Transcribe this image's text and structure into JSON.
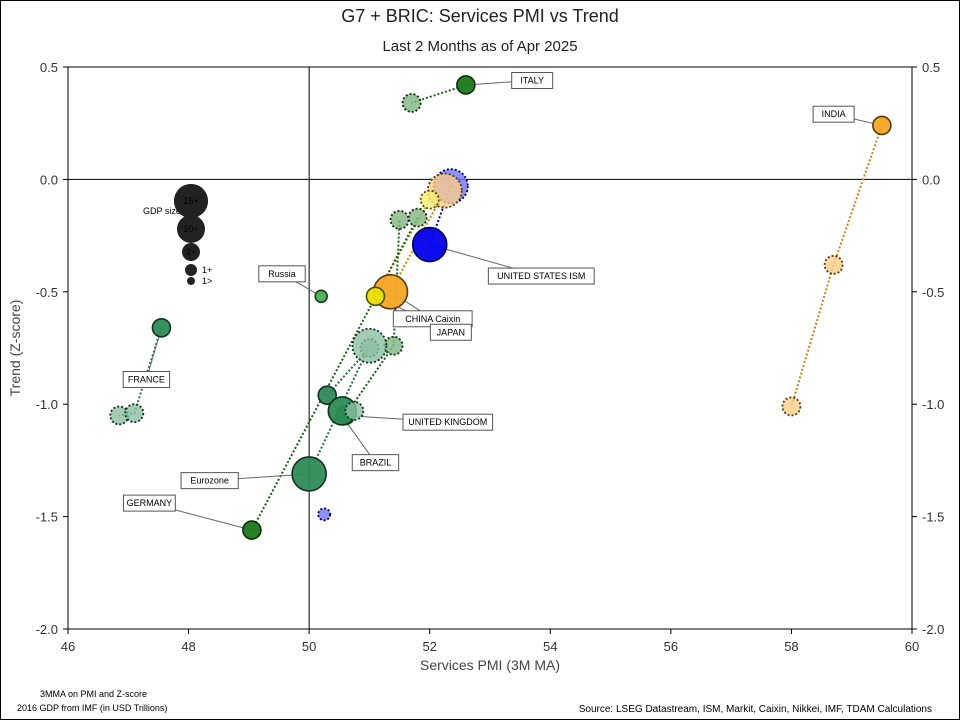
{
  "chart_data": {
    "type": "scatter",
    "title": "G7 + BRIC: Services PMI vs Trend",
    "subtitle": "Last 2 Months as of Apr 2025",
    "xlabel": "Services PMI (3M MA)",
    "ylabel": "Trend (Z-score)",
    "xlim": [
      46,
      60
    ],
    "ylim": [
      -2.0,
      0.5
    ],
    "x_ticks": [
      "46",
      "48",
      "50",
      "52",
      "54",
      "56",
      "58",
      "60"
    ],
    "y_ticks": [
      "0.5",
      "0.0",
      "-0.5",
      "-1.0",
      "-1.5",
      "-2.0"
    ],
    "ref_lines": {
      "x": 50,
      "y": 0
    },
    "series": [
      {
        "name": "ITALY",
        "color": "#1a7a1a",
        "size_class": "2+",
        "points": [
          {
            "x": 52.6,
            "y": 0.42
          },
          {
            "x": 51.7,
            "y": 0.34
          }
        ],
        "label_pos": [
          53.7,
          0.44
        ]
      },
      {
        "name": "INDIA",
        "color": "#f5a623",
        "size_class": "2+",
        "points": [
          {
            "x": 59.5,
            "y": 0.24
          },
          {
            "x": 58.7,
            "y": -0.38
          },
          {
            "x": 58.0,
            "y": -1.01
          }
        ],
        "label_pos": [
          58.7,
          0.29
        ]
      },
      {
        "name": "UNITED STATES ISM",
        "color": "#0000ee",
        "size_class": "15+",
        "points": [
          {
            "x": 52.0,
            "y": -0.29
          },
          {
            "x": 52.35,
            "y": -0.03
          }
        ],
        "label_pos": [
          53.85,
          -0.43
        ]
      },
      {
        "name": "CHINA Caixin",
        "color": "#f5a623",
        "size_class": "15+",
        "points": [
          {
            "x": 51.35,
            "y": -0.5
          },
          {
            "x": 52.25,
            "y": -0.05
          }
        ],
        "label_pos": [
          52.05,
          -0.62
        ]
      },
      {
        "name": "JAPAN",
        "color": "#e8e000",
        "size_class": "2+",
        "points": [
          {
            "x": 51.1,
            "y": -0.52
          },
          {
            "x": 52.0,
            "y": -0.09
          }
        ],
        "label_pos": [
          52.35,
          -0.68
        ]
      },
      {
        "name": "Russia",
        "color": "#4caf50",
        "size_class": "1+",
        "points": [
          {
            "x": 50.2,
            "y": -0.52
          }
        ],
        "label_pos": [
          49.55,
          -0.42
        ]
      },
      {
        "name": "FRANCE",
        "color": "#2e8b57",
        "size_class": "2+",
        "points": [
          {
            "x": 47.55,
            "y": -0.66
          },
          {
            "x": 47.1,
            "y": -1.04
          },
          {
            "x": 46.85,
            "y": -1.05
          }
        ],
        "label_pos": [
          47.3,
          -0.89
        ]
      },
      {
        "name": "UNITED KINGDOM",
        "color": "#1a7a1a",
        "size_class": "2+",
        "points": [
          {
            "x": 50.6,
            "y": -1.05
          },
          {
            "x": 51.4,
            "y": -0.74
          },
          {
            "x": 51.5,
            "y": -0.18
          }
        ],
        "label_pos": [
          52.3,
          -1.08
        ]
      },
      {
        "name": "BRAZIL",
        "color": "#2e8b57",
        "size_class": "2+",
        "points": [
          {
            "x": 50.3,
            "y": -0.96
          },
          {
            "x": 51.0,
            "y": -0.75
          }
        ],
        "label_pos": [
          51.1,
          -1.26
        ]
      },
      {
        "name": "Eurozone",
        "color": "#2e8b57",
        "size_class": "15+",
        "points": [
          {
            "x": 50.0,
            "y": -1.31
          },
          {
            "x": 51.0,
            "y": -0.74
          }
        ],
        "label_pos": [
          48.35,
          -1.34
        ]
      },
      {
        "name": "GERMANY",
        "color": "#1a7a1a",
        "size_class": "2+",
        "points": [
          {
            "x": 49.05,
            "y": -1.56
          },
          {
            "x": 51.8,
            "y": -0.17
          }
        ],
        "label_pos": [
          47.35,
          -1.44
        ]
      }
    ],
    "extra_points": [
      {
        "x": 50.55,
        "y": -1.03,
        "color": "#2e8b57",
        "size_class": "10+"
      },
      {
        "x": 50.75,
        "y": -1.03,
        "color": "#2e8b57",
        "size_class": "2+"
      },
      {
        "x": 50.25,
        "y": -1.49,
        "color": "#0000ee",
        "size_class": "1+"
      }
    ],
    "size_legend": {
      "title": "GDP size",
      "items": [
        "15+",
        "10+",
        "2+",
        "1+",
        "1>"
      ]
    }
  },
  "notes": {
    "left_line1": "3MMA on PMI and Z-score",
    "left_line2": "2016 GDP from IMF (in USD Trillions)",
    "source": "Source: LSEG Datastream, ISM, Markit, Caixin, Nikkei, IMF, TDAM Calculations"
  }
}
